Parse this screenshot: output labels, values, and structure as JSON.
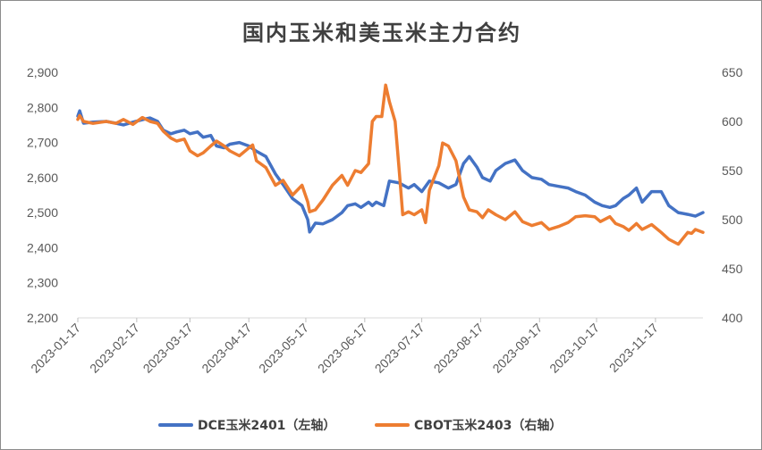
{
  "chart_data": {
    "type": "line",
    "title": "国内玉米和美玉米主力合约",
    "x_tick_labels": [
      "2023-01-17",
      "2023-02-17",
      "2023-03-17",
      "2023-04-17",
      "2023-05-17",
      "2023-06-17",
      "2023-07-17",
      "2023-08-17",
      "2023-09-17",
      "2023-10-17",
      "2023-11-17"
    ],
    "x_range": [
      "2023-01-17",
      "2023-12-12"
    ],
    "y_left": {
      "min": 2200,
      "max": 2900,
      "step": 100,
      "tick_labels": [
        "2,200",
        "2,300",
        "2,400",
        "2,500",
        "2,600",
        "2,700",
        "2,800",
        "2,900"
      ]
    },
    "y_right": {
      "min": 400,
      "max": 650,
      "step": 50,
      "tick_labels": [
        "400",
        "450",
        "500",
        "550",
        "600",
        "650"
      ]
    },
    "legend_position": "bottom",
    "series": [
      {
        "name": "DCE玉米2401（左轴）",
        "axis": "left",
        "color": "#4472C4",
        "points": [
          [
            "2023-01-17",
            2775
          ],
          [
            "2023-01-18",
            2790
          ],
          [
            "2023-01-20",
            2755
          ],
          [
            "2023-01-25",
            2758
          ],
          [
            "2023-02-01",
            2760
          ],
          [
            "2023-02-06",
            2755
          ],
          [
            "2023-02-10",
            2750
          ],
          [
            "2023-02-15",
            2758
          ],
          [
            "2023-02-20",
            2765
          ],
          [
            "2023-02-24",
            2770
          ],
          [
            "2023-02-28",
            2760
          ],
          [
            "2023-03-03",
            2735
          ],
          [
            "2023-03-07",
            2725
          ],
          [
            "2023-03-10",
            2730
          ],
          [
            "2023-03-14",
            2735
          ],
          [
            "2023-03-17",
            2725
          ],
          [
            "2023-03-21",
            2730
          ],
          [
            "2023-03-24",
            2715
          ],
          [
            "2023-03-28",
            2720
          ],
          [
            "2023-03-31",
            2690
          ],
          [
            "2023-04-04",
            2685
          ],
          [
            "2023-04-07",
            2695
          ],
          [
            "2023-04-12",
            2700
          ],
          [
            "2023-04-17",
            2690
          ],
          [
            "2023-04-21",
            2675
          ],
          [
            "2023-04-26",
            2660
          ],
          [
            "2023-05-01",
            2610
          ],
          [
            "2023-05-05",
            2580
          ],
          [
            "2023-05-10",
            2540
          ],
          [
            "2023-05-15",
            2520
          ],
          [
            "2023-05-18",
            2480
          ],
          [
            "2023-05-19",
            2445
          ],
          [
            "2023-05-22",
            2470
          ],
          [
            "2023-05-26",
            2468
          ],
          [
            "2023-05-31",
            2480
          ],
          [
            "2023-06-05",
            2500
          ],
          [
            "2023-06-08",
            2520
          ],
          [
            "2023-06-12",
            2525
          ],
          [
            "2023-06-15",
            2515
          ],
          [
            "2023-06-19",
            2530
          ],
          [
            "2023-06-21",
            2520
          ],
          [
            "2023-06-23",
            2530
          ],
          [
            "2023-06-27",
            2520
          ],
          [
            "2023-06-30",
            2590
          ],
          [
            "2023-07-05",
            2585
          ],
          [
            "2023-07-10",
            2570
          ],
          [
            "2023-07-13",
            2580
          ],
          [
            "2023-07-17",
            2560
          ],
          [
            "2023-07-21",
            2590
          ],
          [
            "2023-07-26",
            2585
          ],
          [
            "2023-07-31",
            2570
          ],
          [
            "2023-08-04",
            2580
          ],
          [
            "2023-08-08",
            2640
          ],
          [
            "2023-08-11",
            2660
          ],
          [
            "2023-08-15",
            2630
          ],
          [
            "2023-08-18",
            2600
          ],
          [
            "2023-08-22",
            2590
          ],
          [
            "2023-08-25",
            2620
          ],
          [
            "2023-08-30",
            2640
          ],
          [
            "2023-09-04",
            2650
          ],
          [
            "2023-09-08",
            2620
          ],
          [
            "2023-09-13",
            2600
          ],
          [
            "2023-09-18",
            2595
          ],
          [
            "2023-09-22",
            2580
          ],
          [
            "2023-09-27",
            2575
          ],
          [
            "2023-10-02",
            2570
          ],
          [
            "2023-10-06",
            2560
          ],
          [
            "2023-10-11",
            2550
          ],
          [
            "2023-10-16",
            2530
          ],
          [
            "2023-10-20",
            2520
          ],
          [
            "2023-10-24",
            2515
          ],
          [
            "2023-10-27",
            2520
          ],
          [
            "2023-10-31",
            2540
          ],
          [
            "2023-11-03",
            2550
          ],
          [
            "2023-11-07",
            2570
          ],
          [
            "2023-11-10",
            2530
          ],
          [
            "2023-11-15",
            2560
          ],
          [
            "2023-11-20",
            2560
          ],
          [
            "2023-11-24",
            2520
          ],
          [
            "2023-11-29",
            2500
          ],
          [
            "2023-12-04",
            2495
          ],
          [
            "2023-12-08",
            2490
          ],
          [
            "2023-12-12",
            2500
          ]
        ]
      },
      {
        "name": "CBOT玉米2403（右轴）",
        "axis": "right",
        "color": "#ED7D31",
        "points": [
          [
            "2023-01-17",
            602
          ],
          [
            "2023-01-18",
            606
          ],
          [
            "2023-01-20",
            600
          ],
          [
            "2023-01-25",
            598
          ],
          [
            "2023-02-01",
            600
          ],
          [
            "2023-02-06",
            598
          ],
          [
            "2023-02-10",
            602
          ],
          [
            "2023-02-15",
            597
          ],
          [
            "2023-02-20",
            604
          ],
          [
            "2023-02-24",
            600
          ],
          [
            "2023-02-28",
            598
          ],
          [
            "2023-03-03",
            590
          ],
          [
            "2023-03-07",
            583
          ],
          [
            "2023-03-10",
            580
          ],
          [
            "2023-03-14",
            582
          ],
          [
            "2023-03-17",
            570
          ],
          [
            "2023-03-21",
            565
          ],
          [
            "2023-03-24",
            568
          ],
          [
            "2023-03-28",
            575
          ],
          [
            "2023-03-31",
            580
          ],
          [
            "2023-04-04",
            575
          ],
          [
            "2023-04-07",
            570
          ],
          [
            "2023-04-12",
            565
          ],
          [
            "2023-04-17",
            573
          ],
          [
            "2023-04-19",
            576
          ],
          [
            "2023-04-21",
            560
          ],
          [
            "2023-04-26",
            553
          ],
          [
            "2023-05-01",
            535
          ],
          [
            "2023-05-05",
            540
          ],
          [
            "2023-05-10",
            525
          ],
          [
            "2023-05-15",
            535
          ],
          [
            "2023-05-18",
            518
          ],
          [
            "2023-05-19",
            508
          ],
          [
            "2023-05-22",
            510
          ],
          [
            "2023-05-26",
            520
          ],
          [
            "2023-05-31",
            535
          ],
          [
            "2023-06-05",
            545
          ],
          [
            "2023-06-08",
            535
          ],
          [
            "2023-06-12",
            550
          ],
          [
            "2023-06-15",
            548
          ],
          [
            "2023-06-19",
            557
          ],
          [
            "2023-06-21",
            600
          ],
          [
            "2023-06-23",
            605
          ],
          [
            "2023-06-26",
            605
          ],
          [
            "2023-06-28",
            637
          ],
          [
            "2023-06-30",
            620
          ],
          [
            "2023-07-03",
            600
          ],
          [
            "2023-07-05",
            553
          ],
          [
            "2023-07-07",
            505
          ],
          [
            "2023-07-10",
            508
          ],
          [
            "2023-07-13",
            505
          ],
          [
            "2023-07-17",
            510
          ],
          [
            "2023-07-19",
            497
          ],
          [
            "2023-07-21",
            530
          ],
          [
            "2023-07-24",
            545
          ],
          [
            "2023-07-26",
            555
          ],
          [
            "2023-07-28",
            578
          ],
          [
            "2023-07-31",
            575
          ],
          [
            "2023-08-04",
            560
          ],
          [
            "2023-08-08",
            523
          ],
          [
            "2023-08-11",
            510
          ],
          [
            "2023-08-15",
            508
          ],
          [
            "2023-08-18",
            502
          ],
          [
            "2023-08-21",
            510
          ],
          [
            "2023-08-25",
            505
          ],
          [
            "2023-08-30",
            500
          ],
          [
            "2023-09-04",
            508
          ],
          [
            "2023-09-08",
            498
          ],
          [
            "2023-09-13",
            494
          ],
          [
            "2023-09-18",
            497
          ],
          [
            "2023-09-22",
            490
          ],
          [
            "2023-09-27",
            493
          ],
          [
            "2023-10-02",
            497
          ],
          [
            "2023-10-06",
            503
          ],
          [
            "2023-10-11",
            504
          ],
          [
            "2023-10-16",
            503
          ],
          [
            "2023-10-19",
            498
          ],
          [
            "2023-10-24",
            503
          ],
          [
            "2023-10-27",
            496
          ],
          [
            "2023-10-31",
            493
          ],
          [
            "2023-11-03",
            489
          ],
          [
            "2023-11-07",
            496
          ],
          [
            "2023-11-10",
            490
          ],
          [
            "2023-11-15",
            495
          ],
          [
            "2023-11-20",
            487
          ],
          [
            "2023-11-24",
            480
          ],
          [
            "2023-11-29",
            475
          ],
          [
            "2023-12-04",
            487
          ],
          [
            "2023-12-06",
            486
          ],
          [
            "2023-12-08",
            490
          ],
          [
            "2023-12-12",
            487
          ]
        ]
      }
    ]
  }
}
